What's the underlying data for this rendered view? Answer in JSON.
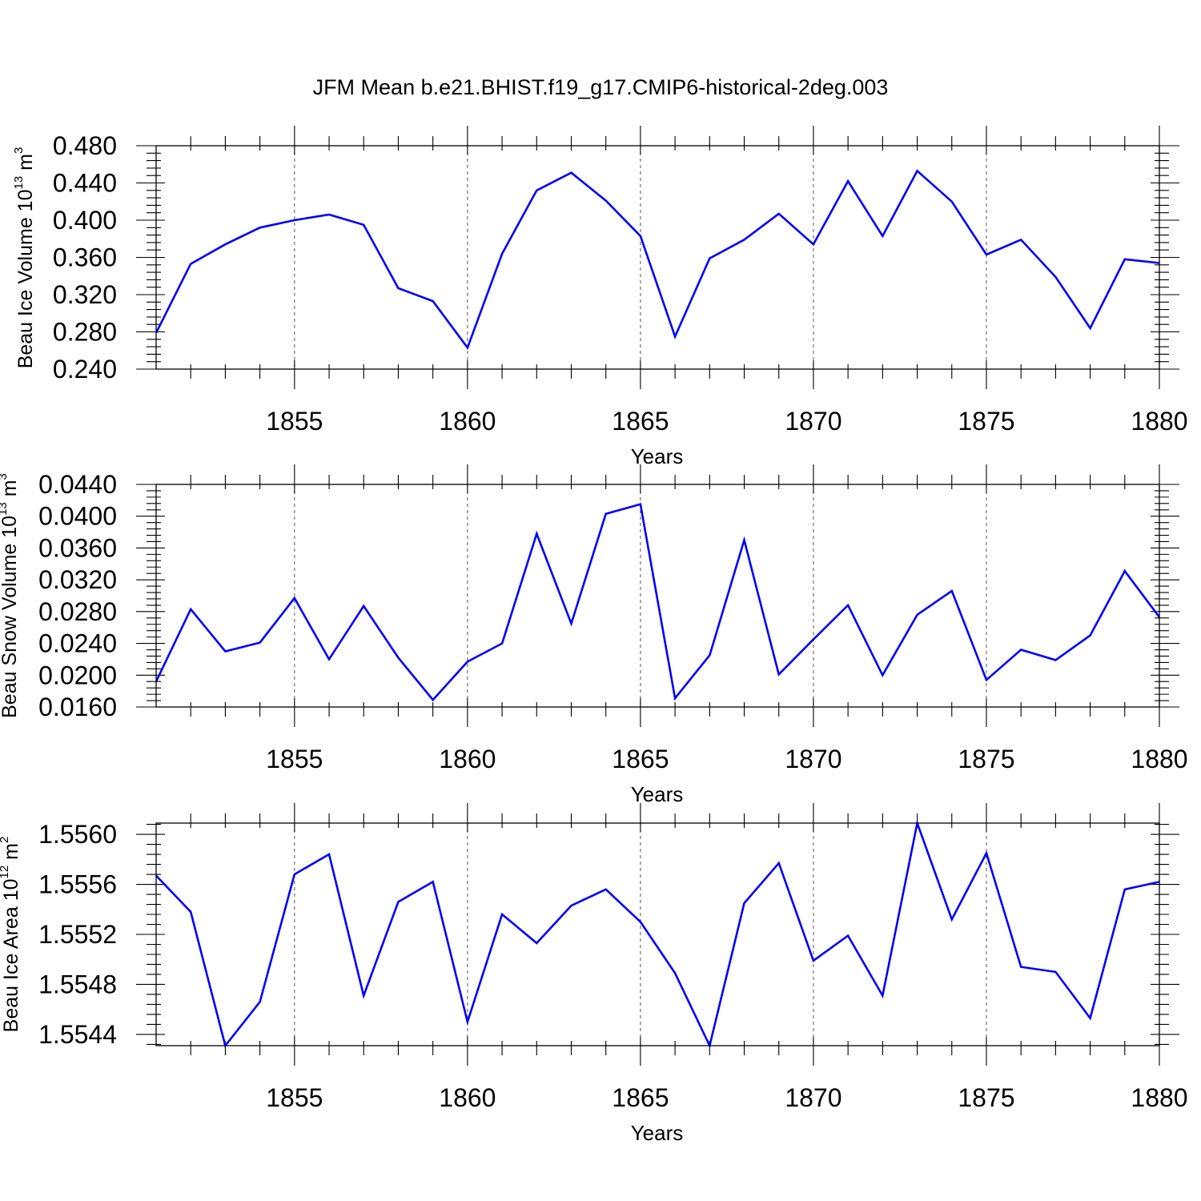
{
  "title": "JFM Mean b.e21.BHIST.f19_g17.CMIP6-historical-2deg.003",
  "colors": {
    "line": "#0000ff",
    "frame": "#000000",
    "grid": "#555555"
  },
  "chart_data": [
    {
      "type": "line",
      "xlabel": "Years",
      "ylabel_main": "Beau Ice Volume 10",
      "ylabel_exp": "13",
      "ylabel_unit": " m",
      "ylabel_unit_exp": "3",
      "xlim": [
        1851,
        1880
      ],
      "ylim": [
        0.24,
        0.48
      ],
      "yticks": [
        0.24,
        0.28,
        0.32,
        0.36,
        0.4,
        0.44,
        0.48
      ],
      "ytick_labels": [
        "0.240",
        "0.280",
        "0.320",
        "0.360",
        "0.400",
        "0.440",
        "0.480"
      ],
      "xticks": [
        1855,
        1860,
        1865,
        1870,
        1875,
        1880
      ],
      "xtick_labels": [
        "1855",
        "1860",
        "1865",
        "1870",
        "1875",
        "1880"
      ],
      "x": [
        1851,
        1852,
        1853,
        1854,
        1855,
        1856,
        1857,
        1858,
        1859,
        1860,
        1861,
        1862,
        1863,
        1864,
        1865,
        1866,
        1867,
        1868,
        1869,
        1870,
        1871,
        1872,
        1873,
        1874,
        1875,
        1876,
        1877,
        1878,
        1879,
        1880
      ],
      "y": [
        0.279,
        0.353,
        0.374,
        0.392,
        0.4,
        0.406,
        0.395,
        0.327,
        0.313,
        0.263,
        0.364,
        0.432,
        0.451,
        0.421,
        0.383,
        0.275,
        0.359,
        0.379,
        0.407,
        0.374,
        0.442,
        0.383,
        0.453,
        0.42,
        0.363,
        0.379,
        0.339,
        0.284,
        0.358,
        0.354
      ]
    },
    {
      "type": "line",
      "xlabel": "Years",
      "ylabel_main": "Beau Snow Volume 10",
      "ylabel_exp": "13",
      "ylabel_unit": " m",
      "ylabel_unit_exp": "3",
      "xlim": [
        1851,
        1880
      ],
      "ylim": [
        0.016,
        0.044
      ],
      "yticks": [
        0.016,
        0.02,
        0.024,
        0.028,
        0.032,
        0.036,
        0.04,
        0.044
      ],
      "ytick_labels": [
        "0.0160",
        "0.0200",
        "0.0240",
        "0.0280",
        "0.0320",
        "0.0360",
        "0.0400",
        "0.0440"
      ],
      "xticks": [
        1855,
        1860,
        1865,
        1870,
        1875,
        1880
      ],
      "xtick_labels": [
        "1855",
        "1860",
        "1865",
        "1870",
        "1875",
        "1880"
      ],
      "x": [
        1851,
        1852,
        1853,
        1854,
        1855,
        1856,
        1857,
        1858,
        1859,
        1860,
        1861,
        1862,
        1863,
        1864,
        1865,
        1866,
        1867,
        1868,
        1869,
        1870,
        1871,
        1872,
        1873,
        1874,
        1875,
        1876,
        1877,
        1878,
        1879,
        1880
      ],
      "y": [
        0.0192,
        0.0283,
        0.023,
        0.0241,
        0.0297,
        0.022,
        0.0287,
        0.0222,
        0.0169,
        0.0217,
        0.024,
        0.0378,
        0.0265,
        0.0403,
        0.0415,
        0.0171,
        0.0225,
        0.037,
        0.0201,
        0.0245,
        0.0288,
        0.02,
        0.0276,
        0.0306,
        0.0194,
        0.0232,
        0.0219,
        0.025,
        0.0331,
        0.0273
      ]
    },
    {
      "type": "line",
      "xlabel": "Years",
      "ylabel_main": "Beau Ice Area 10",
      "ylabel_exp": "12",
      "ylabel_unit": " m",
      "ylabel_unit_exp": "2",
      "xlim": [
        1851,
        1880
      ],
      "ylim": [
        1.55431,
        1.55609
      ],
      "yticks": [
        1.5544,
        1.5548,
        1.5552,
        1.5556,
        1.556
      ],
      "ytick_labels": [
        "1.5544",
        "1.5548",
        "1.5552",
        "1.5556",
        "1.5560"
      ],
      "xticks": [
        1855,
        1860,
        1865,
        1870,
        1875,
        1880
      ],
      "xtick_labels": [
        "1855",
        "1860",
        "1865",
        "1870",
        "1875",
        "1880"
      ],
      "x": [
        1851,
        1852,
        1853,
        1854,
        1855,
        1856,
        1857,
        1858,
        1859,
        1860,
        1861,
        1862,
        1863,
        1864,
        1865,
        1866,
        1867,
        1868,
        1869,
        1870,
        1871,
        1872,
        1873,
        1874,
        1875,
        1876,
        1877,
        1878,
        1879,
        1880
      ],
      "y": [
        1.55567,
        1.55538,
        1.55431,
        1.55466,
        1.55568,
        1.55584,
        1.55471,
        1.55546,
        1.55562,
        1.5545,
        1.55536,
        1.55513,
        1.55543,
        1.55556,
        1.5553,
        1.55489,
        1.55431,
        1.55545,
        1.55577,
        1.55499,
        1.55519,
        1.55471,
        1.55609,
        1.55532,
        1.55585,
        1.55494,
        1.5549,
        1.55453,
        1.55556,
        1.55562
      ]
    }
  ]
}
